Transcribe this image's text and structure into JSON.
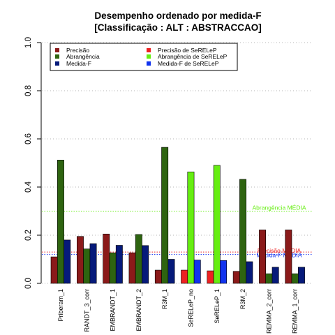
{
  "chart_data": {
    "type": "bar",
    "title": "Desempenho ordenado por medida-F",
    "subtitle": "[Classificação : ALT : ABSTRACCAO]",
    "xlabel": "",
    "ylabel": "",
    "ylim": [
      0,
      1
    ],
    "yticks": [
      "0.0",
      "0.2",
      "0.4",
      "0.6",
      "0.8",
      "1.0"
    ],
    "grid": true,
    "legend_position": "top-left",
    "categories": [
      "Priberam_1",
      "RANDT_3_corr",
      "EMBRANDT_1",
      "EMBRANDT_2",
      "R3M_1",
      "SeRELeP_no",
      "SeRELeP_1",
      "R3M_2",
      "REMMA_2_corr",
      "REMMA_1_corr"
    ],
    "series": [
      {
        "name": "Precisão",
        "color": "#8b1a1a",
        "values": [
          0.11,
          0.195,
          0.205,
          0.127,
          0.055,
          null,
          null,
          0.05,
          0.222,
          0.222
        ]
      },
      {
        "name": "Abrangência",
        "color": "#2e6410",
        "values": [
          0.512,
          0.143,
          0.127,
          0.203,
          0.565,
          null,
          null,
          0.432,
          0.04,
          0.04
        ]
      },
      {
        "name": "Medida-F",
        "color": "#061a7a",
        "values": [
          0.18,
          0.165,
          0.158,
          0.157,
          0.1,
          null,
          null,
          0.09,
          0.067,
          0.067
        ]
      },
      {
        "name": "Precisão  de  SeRELeP",
        "color": "#ee2222",
        "values": [
          null,
          null,
          null,
          null,
          null,
          0.055,
          0.052,
          null,
          null,
          null
        ]
      },
      {
        "name": "Abrangência  de  SeRELeP",
        "color": "#66ee11",
        "values": [
          null,
          null,
          null,
          null,
          null,
          0.463,
          0.49,
          null,
          null,
          null
        ]
      },
      {
        "name": "Medida-F  de  SeRELeP",
        "color": "#1133ee",
        "values": [
          null,
          null,
          null,
          null,
          null,
          0.097,
          0.095,
          null,
          null,
          null
        ]
      }
    ],
    "reference_lines": [
      {
        "label": "Abrangência MÉDIA",
        "value": 0.3,
        "color": "#66ee11"
      },
      {
        "label": "Precisão MÉDIA",
        "value": 0.13,
        "color": "#ee2222"
      },
      {
        "label": "Medida-F MÉDIA",
        "value": 0.12,
        "color": "#1133ee"
      }
    ]
  }
}
